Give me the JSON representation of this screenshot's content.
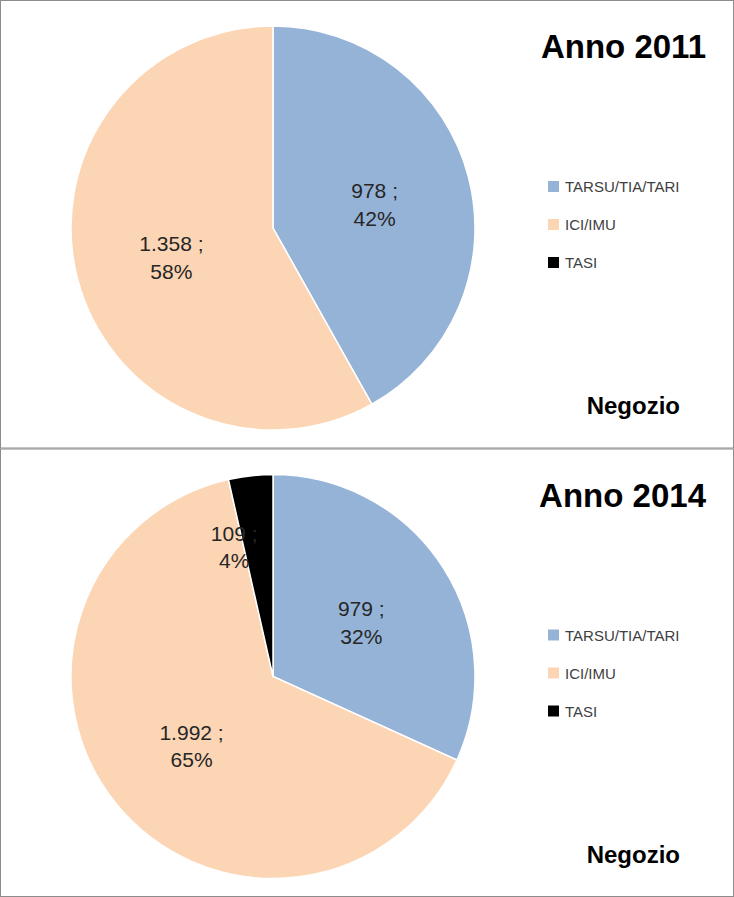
{
  "chart_data": [
    {
      "type": "pie",
      "title": "Anno 2011",
      "annotations": [
        "Negozio"
      ],
      "categories": [
        "TARSU/TIA/TARI",
        "ICI/IMU",
        "TASI"
      ],
      "values": [
        978,
        1358,
        null
      ],
      "value_labels": [
        "978 ;",
        "1.358 ;",
        null
      ],
      "percentages": [
        42,
        58,
        null
      ],
      "percentage_labels": [
        "42%",
        "58%",
        null
      ],
      "colors": [
        "#95b3d7",
        "#fcd5b5",
        "#000000"
      ],
      "data_labels": true,
      "legend": "right"
    },
    {
      "type": "pie",
      "title": "Anno 2014",
      "annotations": [
        "Negozio"
      ],
      "categories": [
        "TARSU/TIA/TARI",
        "ICI/IMU",
        "TASI"
      ],
      "values": [
        979,
        1992,
        109
      ],
      "value_labels": [
        "979 ;",
        "1.992 ;",
        "109 ;"
      ],
      "percentages": [
        32,
        65,
        4
      ],
      "percentage_labels": [
        "32%",
        "65%",
        "4%"
      ],
      "colors": [
        "#95b3d7",
        "#fcd5b5",
        "#000000"
      ],
      "data_labels": true,
      "legend": "right"
    }
  ]
}
